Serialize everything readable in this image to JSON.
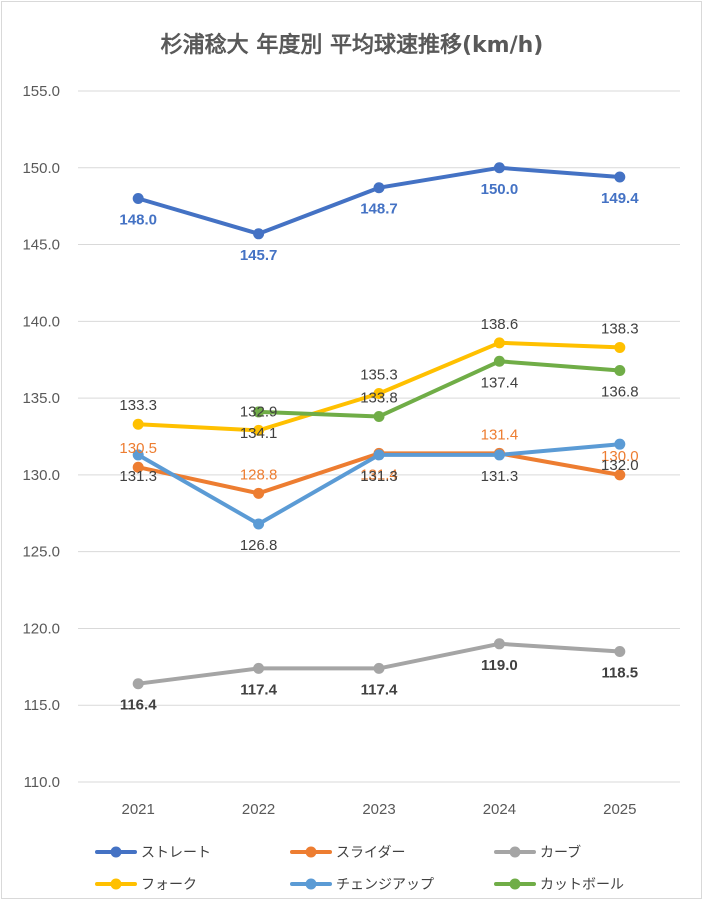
{
  "chart_data": {
    "type": "line",
    "title": "杉浦稔大 年度別 平均球速推移(km/h)",
    "xlabel": "",
    "ylabel": "",
    "categories": [
      "2021",
      "2022",
      "2023",
      "2024",
      "2025"
    ],
    "ylim": [
      110,
      155
    ],
    "yticks": [
      110,
      115,
      120,
      125,
      130,
      135,
      140,
      145,
      150,
      155
    ],
    "ytick_labels": [
      "110.0",
      "115.0",
      "120.0",
      "125.0",
      "130.0",
      "135.0",
      "140.0",
      "145.0",
      "150.0",
      "155.0"
    ],
    "grid": true,
    "legend_position": "bottom",
    "series": [
      {
        "name": "ストレート",
        "color": "#4472C4",
        "label_color": "#4472C4",
        "label_bold": true,
        "values": [
          148.0,
          145.7,
          148.7,
          150.0,
          149.4
        ],
        "labels": [
          "148.0",
          "145.7",
          "148.7",
          "150.0",
          "149.4"
        ]
      },
      {
        "name": "スライダー",
        "color": "#ED7D31",
        "label_color": "#ED7D31",
        "label_bold": false,
        "values": [
          130.5,
          128.8,
          131.4,
          131.4,
          130.0
        ],
        "labels": [
          "130.5",
          "128.8",
          "131.4",
          "131.4",
          "130.0"
        ]
      },
      {
        "name": "カーブ",
        "color": "#A5A5A5",
        "label_color": "#404040",
        "label_bold": true,
        "values": [
          116.4,
          117.4,
          117.4,
          119.0,
          118.5
        ],
        "labels": [
          "116.4",
          "117.4",
          "117.4",
          "119.0",
          "118.5"
        ]
      },
      {
        "name": "フォーク",
        "color": "#FFC000",
        "label_color": "#404040",
        "label_bold": false,
        "values": [
          133.3,
          132.9,
          135.3,
          138.6,
          138.3
        ],
        "labels": [
          "133.3",
          "132.9",
          "135.3",
          "138.6",
          "138.3"
        ]
      },
      {
        "name": "チェンジアップ",
        "color": "#5B9BD5",
        "label_color": "#404040",
        "label_bold": false,
        "values": [
          131.3,
          126.8,
          131.3,
          131.3,
          132.0
        ],
        "labels": [
          "131.3",
          "126.8",
          "131.3",
          "131.3",
          "132.0"
        ]
      },
      {
        "name": "カットボール",
        "color": "#70AD47",
        "label_color": "#404040",
        "label_bold": false,
        "values": [
          null,
          134.1,
          133.8,
          137.4,
          136.8
        ],
        "labels": [
          null,
          "134.1",
          "133.8",
          "137.4",
          "136.8"
        ]
      }
    ]
  }
}
